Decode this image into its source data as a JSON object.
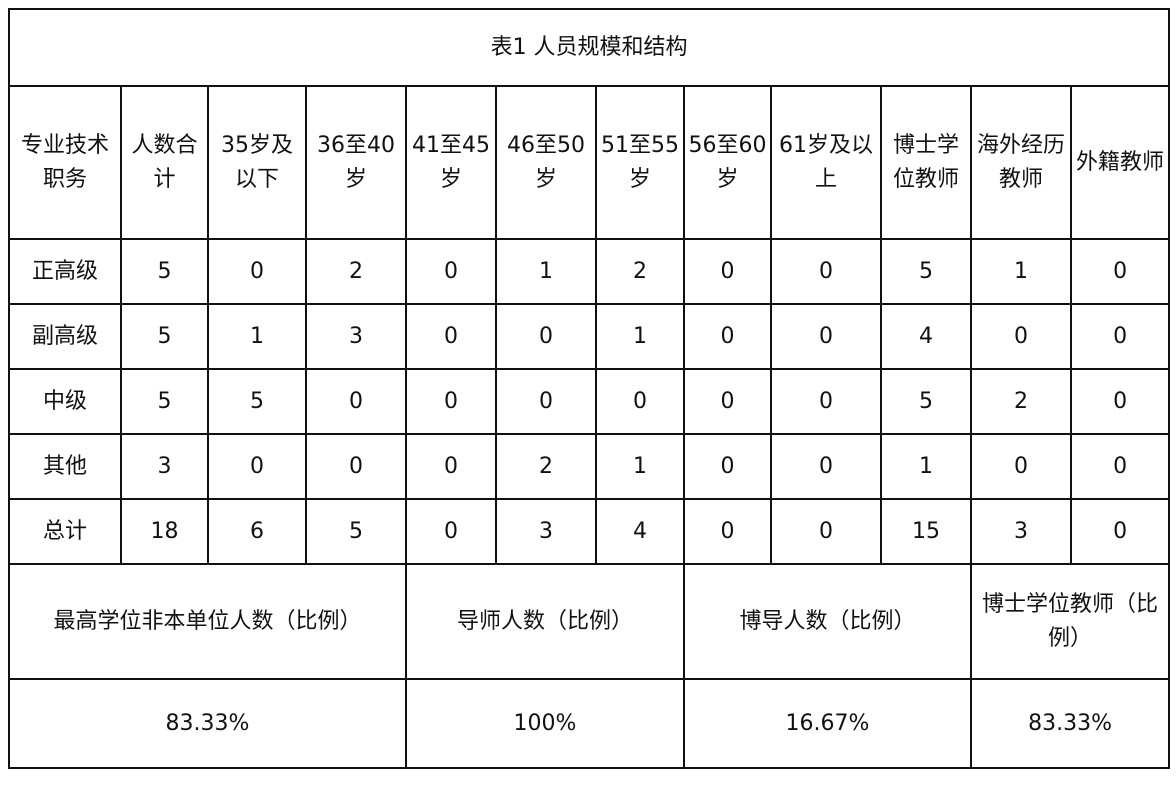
{
  "title": "表1 人员规模和结构",
  "headers": [
    "专业技术职务",
    "人数合计",
    "35岁及以下",
    "36至40岁",
    "41至45岁",
    "46至50岁",
    "51至55岁",
    "56至60岁",
    "61岁及以上",
    "博士学位教师",
    "海外经历教师",
    "外籍教师"
  ],
  "rows": [
    [
      "正高级",
      "5",
      "0",
      "2",
      "0",
      "1",
      "2",
      "0",
      "0",
      "5",
      "1",
      "0"
    ],
    [
      "副高级",
      "5",
      "1",
      "3",
      "0",
      "0",
      "1",
      "0",
      "0",
      "4",
      "0",
      "0"
    ],
    [
      "中级",
      "5",
      "5",
      "0",
      "0",
      "0",
      "0",
      "0",
      "0",
      "5",
      "2",
      "0"
    ],
    [
      "其他",
      "3",
      "0",
      "0",
      "0",
      "2",
      "1",
      "0",
      "0",
      "1",
      "0",
      "0"
    ],
    [
      "总计",
      "18",
      "6",
      "5",
      "0",
      "3",
      "4",
      "0",
      "0",
      "15",
      "3",
      "0"
    ]
  ],
  "summary_headers": [
    "最高学位非本单位人数（比例）",
    "导师人数（比例）",
    "博导人数（比例）",
    "博士学位教师（比例）"
  ],
  "summary_values": [
    "83.33%",
    "100%",
    "16.67%",
    "83.33%"
  ]
}
